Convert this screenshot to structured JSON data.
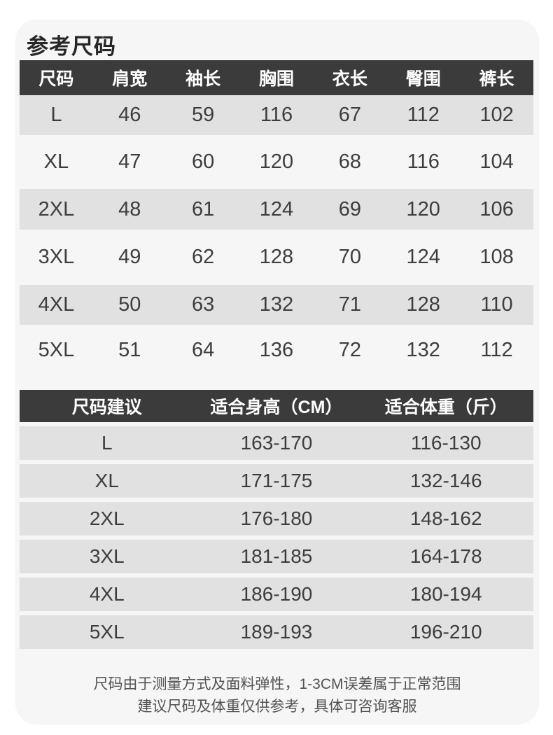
{
  "page": {
    "title": "参考尺码"
  },
  "colors": {
    "card_background": "#f6f6f6",
    "table_header_background": "#3b3b3b",
    "table_header_text": "#ffffff",
    "row_stripe": "#e1e1e1",
    "body_text": "#3d3d3d",
    "footer_text": "#525252"
  },
  "size_table": {
    "headers": [
      "尺码",
      "肩宽",
      "袖长",
      "胸围",
      "衣长",
      "臀围",
      "裤长"
    ],
    "rows": [
      [
        "L",
        "46",
        "59",
        "116",
        "67",
        "112",
        "102"
      ],
      [
        "XL",
        "47",
        "60",
        "120",
        "68",
        "116",
        "104"
      ],
      [
        "2XL",
        "48",
        "61",
        "124",
        "69",
        "120",
        "106"
      ],
      [
        "3XL",
        "49",
        "62",
        "128",
        "70",
        "124",
        "108"
      ],
      [
        "4XL",
        "50",
        "63",
        "132",
        "71",
        "128",
        "110"
      ],
      [
        "5XL",
        "51",
        "64",
        "136",
        "72",
        "132",
        "112"
      ]
    ]
  },
  "suggestion_table": {
    "headers": [
      "尺码建议",
      "适合身高（CM）",
      "适合体重（斤）"
    ],
    "rows": [
      [
        "L",
        "163-170",
        "116-130"
      ],
      [
        "XL",
        "171-175",
        "132-146"
      ],
      [
        "2XL",
        "176-180",
        "148-162"
      ],
      [
        "3XL",
        "181-185",
        "164-178"
      ],
      [
        "4XL",
        "186-190",
        "180-194"
      ],
      [
        "5XL",
        "189-193",
        "196-210"
      ]
    ]
  },
  "footer": {
    "line1": "尺码由于测量方式及面料弹性，1-3CM误差属于正常范围",
    "line2": "建议尺码及体重仅供参考，具体可咨询客服"
  }
}
